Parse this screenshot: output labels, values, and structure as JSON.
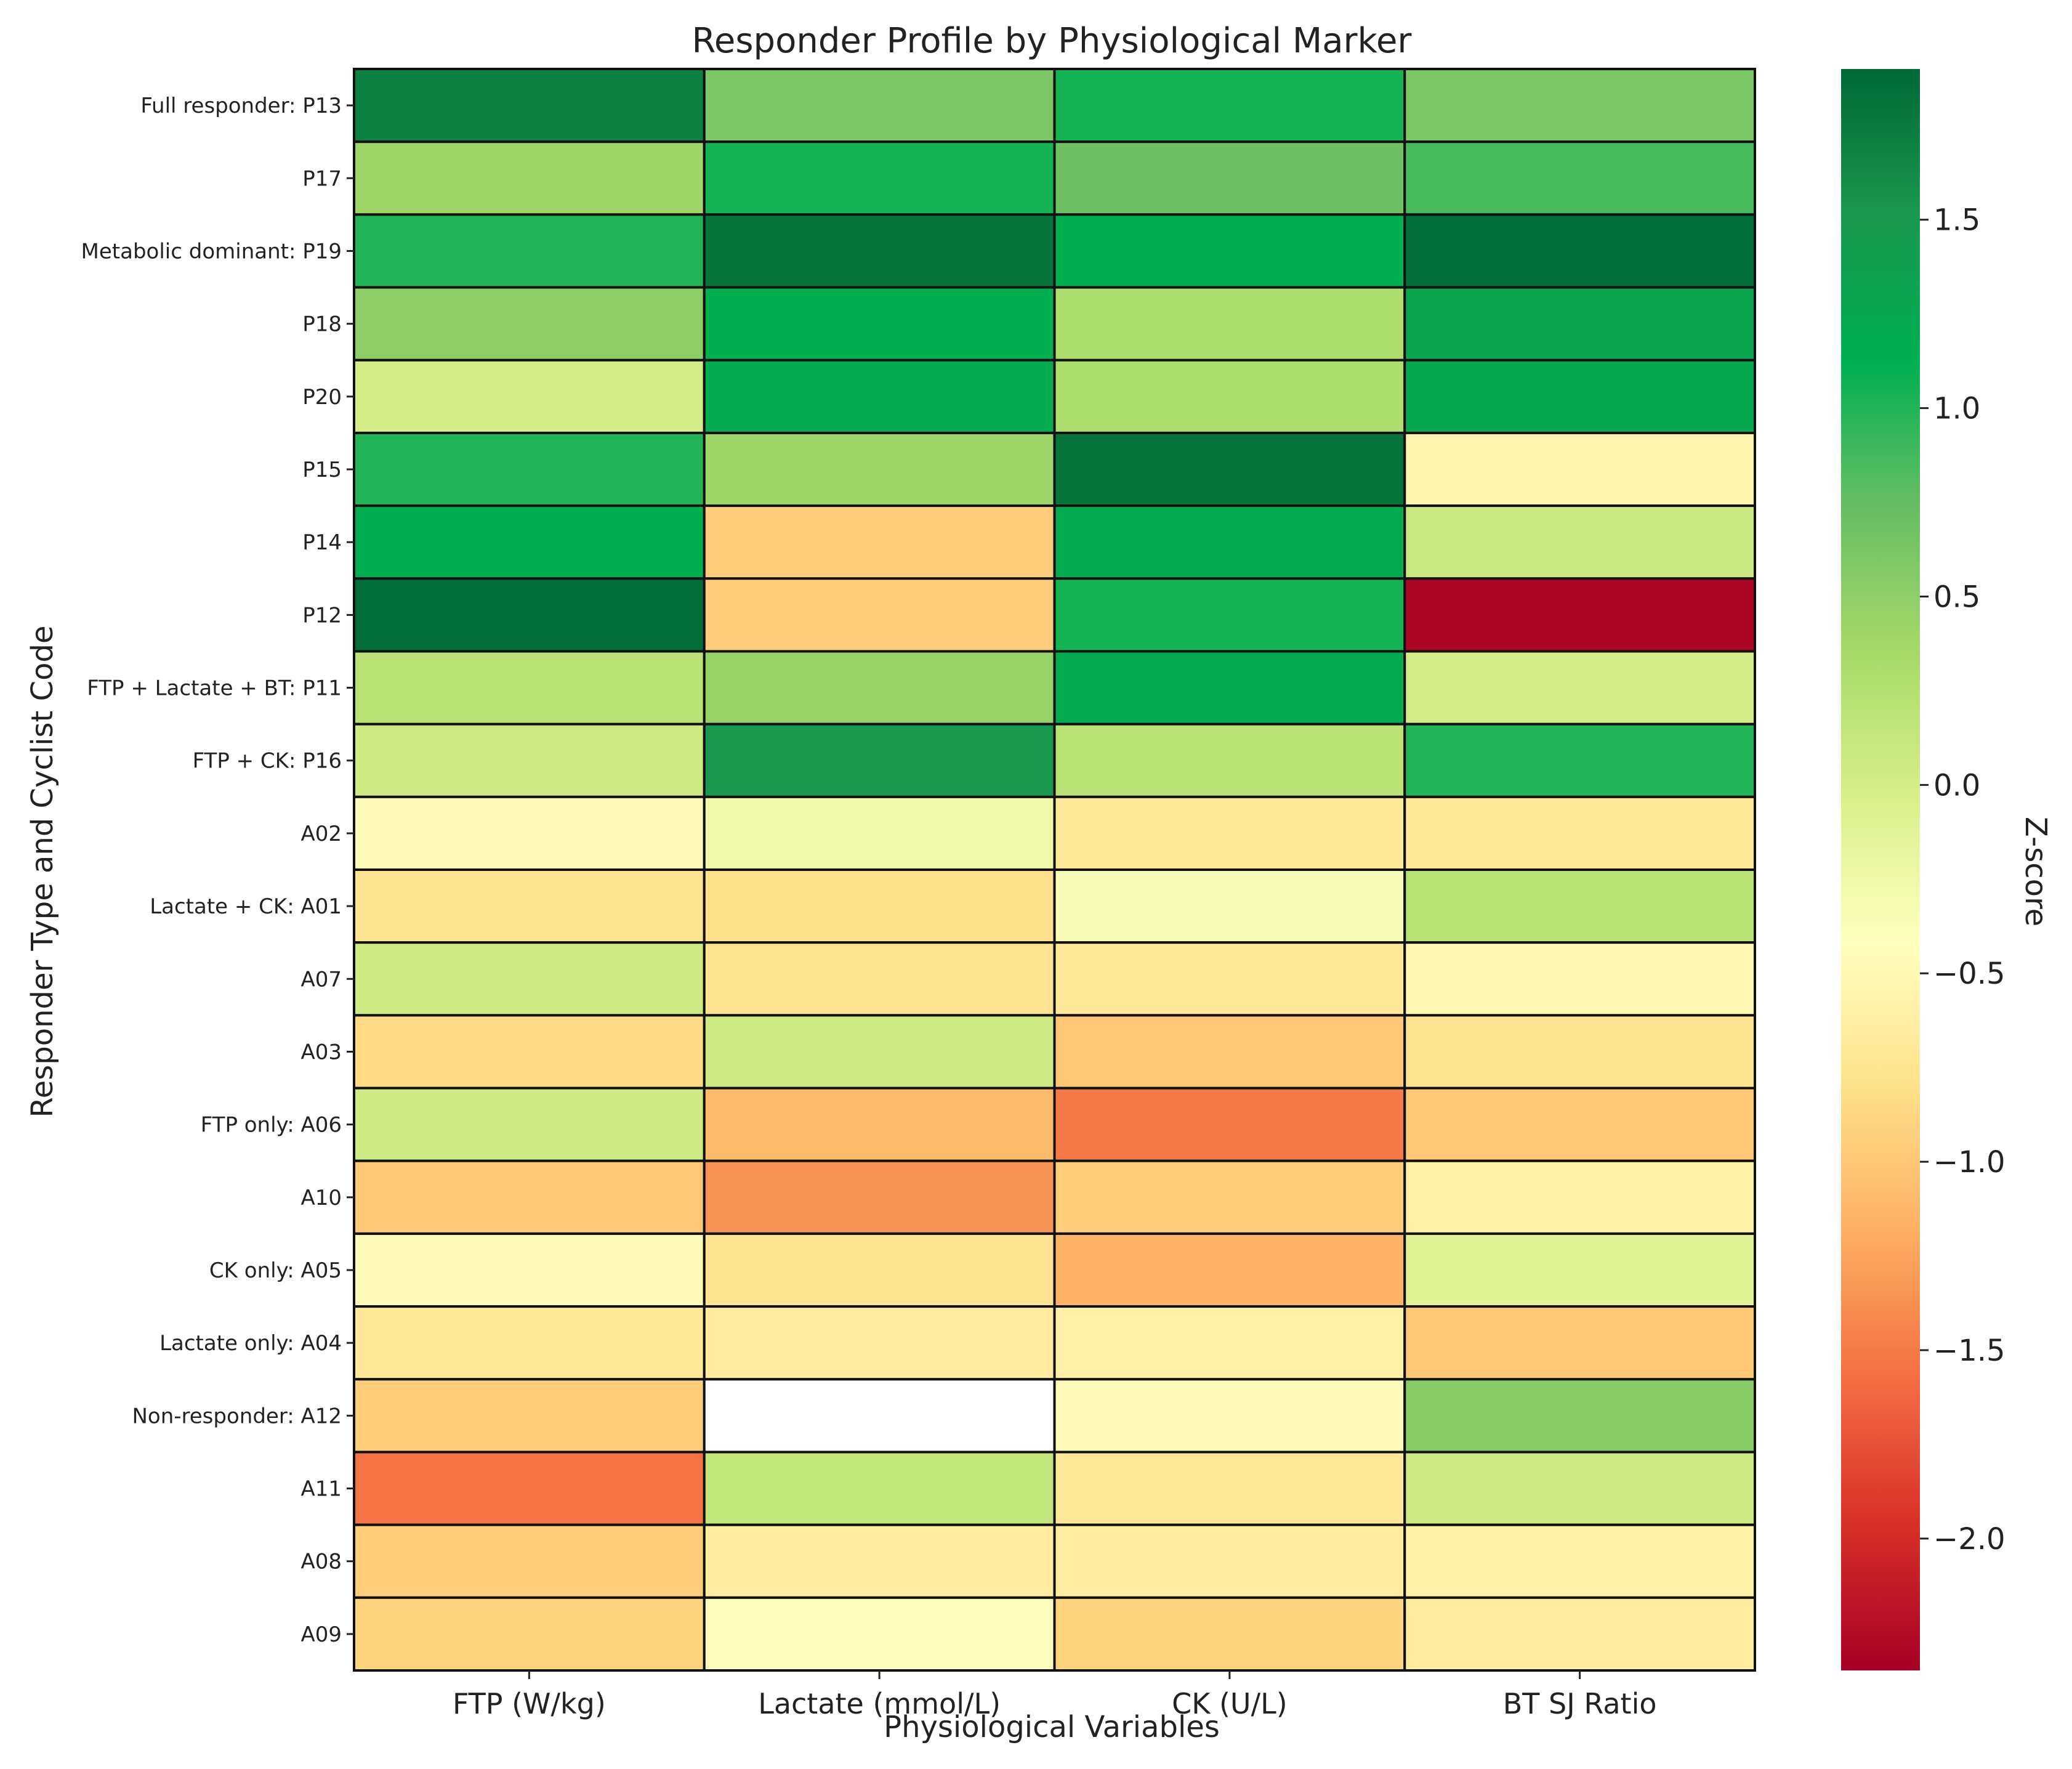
{
  "chart_data": {
    "type": "heatmap",
    "title": "Responder Profile by Physiological Marker",
    "xlabel": "Physiological Variables",
    "ylabel": "Responder Type and Cyclist Code",
    "columns": [
      "FTP (W/kg)",
      "Lactate (mmol/L)",
      "CK (U/L)",
      "BT SJ Ratio"
    ],
    "rows": [
      "Full responder: P13",
      "P17",
      "Metabolic dominant: P19",
      "P18",
      "P20",
      "P15",
      "P14",
      "P12",
      "FTP + Lactate + BT: P11",
      "FTP + CK: P16",
      "A02",
      "Lactate + CK: A01",
      "A07",
      "A03",
      "FTP only: A06",
      "A10",
      "CK only: A05",
      "Lactate only: A04",
      "Non-responder: A12",
      "A11",
      "A08",
      "A09"
    ],
    "values": [
      [
        1.7,
        0.6,
        1.05,
        0.6
      ],
      [
        0.4,
        1.05,
        0.7,
        0.85
      ],
      [
        1.0,
        1.8,
        1.15,
        1.85
      ],
      [
        0.5,
        1.15,
        0.3,
        1.3
      ],
      [
        0.0,
        1.2,
        0.3,
        1.25
      ],
      [
        1.0,
        0.4,
        1.8,
        -0.55
      ],
      [
        1.15,
        -0.95,
        1.2,
        0.1
      ],
      [
        1.85,
        -0.95,
        1.05,
        -2.3
      ],
      [
        0.2,
        0.45,
        1.2,
        0.0
      ],
      [
        0.05,
        1.5,
        0.2,
        1.0
      ],
      [
        -0.45,
        -0.25,
        -0.7,
        -0.7
      ],
      [
        -0.75,
        -0.8,
        -0.35,
        0.2
      ],
      [
        0.05,
        -0.75,
        -0.7,
        -0.5
      ],
      [
        -0.85,
        0.05,
        -1.0,
        -0.75
      ],
      [
        0.05,
        -1.1,
        -1.5,
        -1.0
      ],
      [
        -1.0,
        -1.35,
        -0.95,
        -0.6
      ],
      [
        -0.45,
        -0.75,
        -1.15,
        -0.1
      ],
      [
        -0.7,
        -0.65,
        -0.6,
        -1.0
      ],
      [
        -0.95,
        null,
        -0.45,
        0.55
      ],
      [
        -1.55,
        0.15,
        -0.7,
        0.05
      ],
      [
        -0.95,
        -0.65,
        -0.65,
        -0.6
      ],
      [
        -0.9,
        -0.4,
        -0.9,
        -0.65
      ]
    ],
    "colorbar": {
      "label": "Z-score",
      "min": -2.35,
      "max": 1.9,
      "ticks": [
        -2.0,
        -1.5,
        -1.0,
        -0.5,
        0.0,
        0.5,
        1.0,
        1.5
      ],
      "tick_labels": [
        "−2.0",
        "−1.5",
        "−1.0",
        "−0.5",
        "0.0",
        "0.5",
        "1.0",
        "1.5"
      ],
      "colormap": "RdYlGn",
      "stops": [
        "#a50026",
        "#d73027",
        "#f46d43",
        "#fdae61",
        "#fee08b",
        "#ffffbf",
        "#d9ef8b",
        "#a6d96a",
        "#66bd63",
        "#00b050",
        "#1a9850",
        "#006837"
      ]
    }
  }
}
